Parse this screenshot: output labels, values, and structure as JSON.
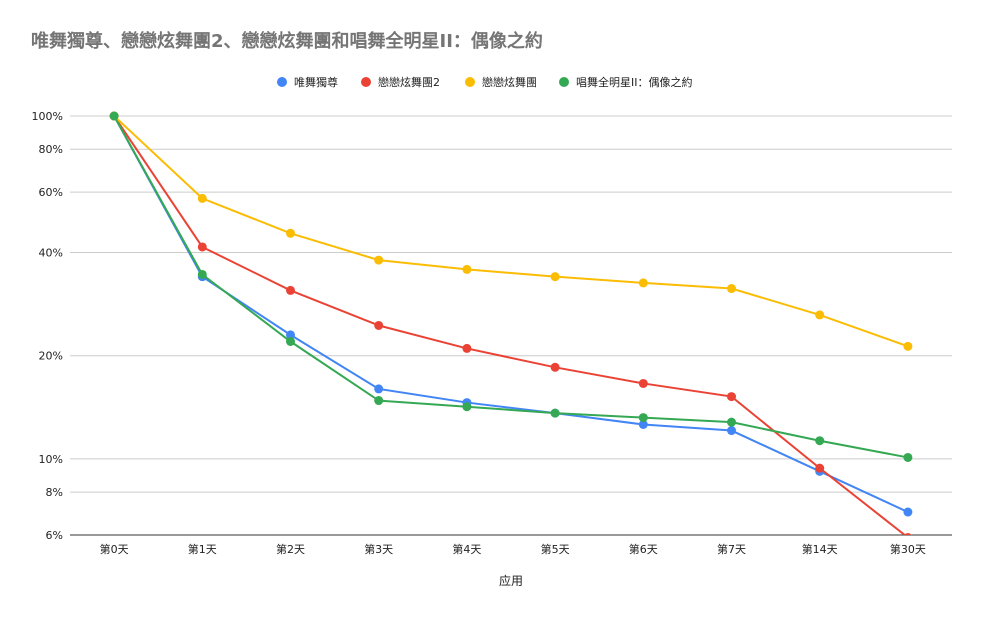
{
  "chart_data": {
    "type": "line",
    "title": "唯舞獨尊、戀戀炫舞團2、戀戀炫舞團和唱舞全明星II：偶像之約",
    "xlabel": "应用",
    "ylabel": "",
    "y_scale": "log",
    "ylim": [
      6,
      100
    ],
    "y_ticks": [
      6,
      8,
      10,
      20,
      40,
      60,
      80,
      100
    ],
    "y_tick_labels": [
      "6%",
      "8%",
      "10%",
      "20%",
      "40%",
      "60%",
      "80%",
      "100%"
    ],
    "grid": true,
    "legend_position": "top",
    "categories": [
      "第0天",
      "第1天",
      "第2天",
      "第3天",
      "第4天",
      "第5天",
      "第6天",
      "第7天",
      "第14天",
      "第30天"
    ],
    "series": [
      {
        "name": "唯舞獨尊",
        "color": "#4285F4",
        "values": [
          100,
          34,
          23,
          16,
          14.6,
          13.6,
          12.6,
          12.1,
          9.2,
          7.0
        ]
      },
      {
        "name": "戀戀炫舞團2",
        "color": "#EA4335",
        "values": [
          100,
          41.5,
          31,
          24.5,
          21,
          18.5,
          16.6,
          15.2,
          9.4,
          5.9
        ]
      },
      {
        "name": "戀戀炫舞團",
        "color": "#FBBC04",
        "values": [
          100,
          57.5,
          45.5,
          38,
          35.7,
          34,
          32.6,
          31.4,
          26.3,
          21.3
        ]
      },
      {
        "name": "唱舞全明星II：偶像之約",
        "color": "#34A853",
        "values": [
          100,
          34.5,
          22,
          14.8,
          14.2,
          13.6,
          13.2,
          12.8,
          11.3,
          10.1
        ]
      }
    ]
  }
}
